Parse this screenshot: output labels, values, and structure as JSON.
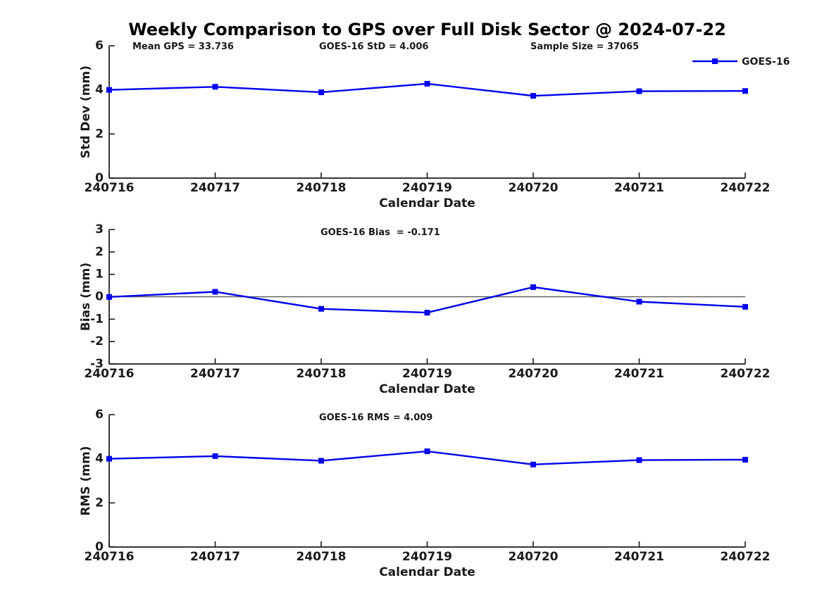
{
  "title": "Weekly Comparison to GPS over Full Disk Sector @ 2024-07-22",
  "colors": {
    "series": "#0000ee",
    "axis": "#1a1a1a",
    "text": "#1a1a1a",
    "zero_line": "#606060",
    "background": "#ffffff"
  },
  "legend": {
    "label": "GOES-16",
    "position": "top-right"
  },
  "chart_data": [
    {
      "type": "line",
      "categories": [
        "240716",
        "240717",
        "240718",
        "240719",
        "240720",
        "240721",
        "240722"
      ],
      "series": [
        {
          "name": "GOES-16",
          "values": [
            4.0,
            4.14,
            3.89,
            4.28,
            3.73,
            3.94,
            3.95
          ]
        }
      ],
      "xlabel": "Calendar Date",
      "ylabel": "Std Dev (mm)",
      "ylim": [
        0,
        6
      ],
      "yticks": [
        0,
        2,
        4,
        6
      ],
      "grid": false,
      "zero_line": false,
      "legend_visible": true,
      "legend_position": "top-right",
      "annotations": [
        {
          "text": "Mean GPS = 33.736"
        },
        {
          "text": "GOES-16 StD = 4.006"
        },
        {
          "text": "Sample Size = 37065"
        }
      ]
    },
    {
      "type": "line",
      "categories": [
        "240716",
        "240717",
        "240718",
        "240719",
        "240720",
        "240721",
        "240722"
      ],
      "series": [
        {
          "name": "GOES-16",
          "values": [
            -0.01,
            0.22,
            -0.54,
            -0.71,
            0.43,
            -0.22,
            -0.45
          ]
        }
      ],
      "xlabel": "Calendar Date",
      "ylabel": "Bias (mm)",
      "ylim": [
        -3,
        3
      ],
      "yticks": [
        -3,
        -2,
        -1,
        0,
        1,
        2,
        3
      ],
      "grid": false,
      "zero_line": true,
      "legend_visible": false,
      "annotations": [
        {
          "text": "GOES-16 Bias  = -0.171"
        }
      ]
    },
    {
      "type": "line",
      "categories": [
        "240716",
        "240717",
        "240718",
        "240719",
        "240720",
        "240721",
        "240722"
      ],
      "series": [
        {
          "name": "GOES-16",
          "values": [
            4.0,
            4.12,
            3.91,
            4.34,
            3.74,
            3.94,
            3.96
          ]
        }
      ],
      "xlabel": "Calendar Date",
      "ylabel": "RMS (mm)",
      "ylim": [
        0,
        6
      ],
      "yticks": [
        0,
        2,
        4,
        6
      ],
      "grid": false,
      "zero_line": false,
      "legend_visible": false,
      "annotations": [
        {
          "text": "GOES-16 RMS = 4.009"
        }
      ]
    }
  ]
}
